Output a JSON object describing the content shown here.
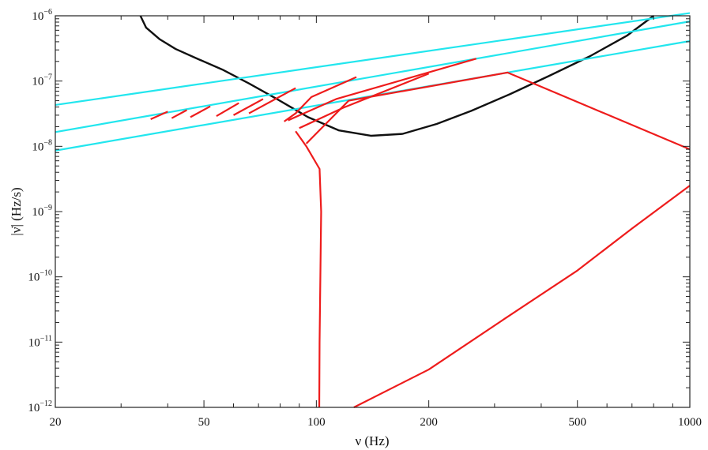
{
  "chart_data": {
    "type": "line",
    "xlabel": "ν (Hz)",
    "ylabel": "|ν̇| (Hz/s)",
    "xscale": "log",
    "yscale": "log",
    "xlim": [
      20,
      1000
    ],
    "ylim": [
      1e-12,
      1e-06
    ],
    "x_ticks": [
      {
        "value": 20,
        "label": "20"
      },
      {
        "value": 50,
        "label": "50"
      },
      {
        "value": 100,
        "label": "100"
      },
      {
        "value": 200,
        "label": "200"
      },
      {
        "value": 500,
        "label": "500"
      },
      {
        "value": 1000,
        "label": "1000"
      }
    ],
    "y_ticks": [
      {
        "value": 1e-12,
        "base": "10",
        "exp": "−12"
      },
      {
        "value": 1e-11,
        "base": "10",
        "exp": "−11"
      },
      {
        "value": 1e-10,
        "base": "10",
        "exp": "−10"
      },
      {
        "value": 1e-09,
        "base": "10",
        "exp": "−9"
      },
      {
        "value": 1e-08,
        "base": "10",
        "exp": "−8"
      },
      {
        "value": 1e-07,
        "base": "10",
        "exp": "−7"
      },
      {
        "value": 1e-06,
        "base": "10",
        "exp": "−6"
      }
    ],
    "grid": false,
    "legend": "none",
    "colors": {
      "black": "#111111",
      "cyan": "#22e6ee",
      "red": "#ee1c1c"
    },
    "series": [
      {
        "color": "black",
        "points": [
          [
            33.8,
            1e-06
          ],
          [
            35.0,
            6.6e-07
          ],
          [
            38.0,
            4.4e-07
          ],
          [
            42.0,
            3.1e-07
          ],
          [
            48.0,
            2.2e-07
          ],
          [
            56.0,
            1.5e-07
          ],
          [
            66.0,
            9.2e-08
          ],
          [
            78.0,
            5.4e-08
          ],
          [
            95.0,
            2.8e-08
          ],
          [
            115.0,
            1.75e-08
          ],
          [
            140.0,
            1.45e-08
          ],
          [
            170.0,
            1.55e-08
          ],
          [
            210.0,
            2.2e-08
          ],
          [
            260.0,
            3.5e-08
          ],
          [
            330.0,
            6.3e-08
          ],
          [
            420.0,
            1.2e-07
          ],
          [
            540.0,
            2.4e-07
          ],
          [
            680.0,
            5e-07
          ],
          [
            800.0,
            1e-06
          ]
        ]
      },
      {
        "color": "cyan",
        "points": [
          [
            20,
            4.3e-08
          ],
          [
            1000,
            1.1e-06
          ]
        ]
      },
      {
        "color": "cyan",
        "points": [
          [
            20,
            1.65e-08
          ],
          [
            1000,
            8.2e-07
          ]
        ]
      },
      {
        "color": "cyan",
        "points": [
          [
            20,
            8.6e-09
          ],
          [
            1000,
            4.1e-07
          ]
        ]
      },
      {
        "color": "red",
        "points": [
          [
            36,
            2.6e-08
          ],
          [
            40,
            3.4e-08
          ]
        ]
      },
      {
        "color": "red",
        "points": [
          [
            41,
            2.7e-08
          ],
          [
            45,
            3.6e-08
          ]
        ]
      },
      {
        "color": "red",
        "points": [
          [
            46,
            2.8e-08
          ],
          [
            52,
            4.1e-08
          ]
        ]
      },
      {
        "color": "red",
        "points": [
          [
            54,
            2.9e-08
          ],
          [
            62,
            4.6e-08
          ]
        ]
      },
      {
        "color": "red",
        "points": [
          [
            60,
            3e-08
          ],
          [
            72,
            5.3e-08
          ]
        ]
      },
      {
        "color": "red",
        "points": [
          [
            66,
            3.2e-08
          ],
          [
            88,
            7.8e-08
          ]
        ]
      },
      {
        "color": "red",
        "points": [
          [
            82,
            2.4e-08
          ],
          [
            88,
            3.2e-08
          ],
          [
            97,
            5.7e-08
          ],
          [
            128,
            1.15e-07
          ]
        ]
      },
      {
        "color": "red",
        "points": [
          [
            84,
            2.5e-08
          ],
          [
            113,
            5.3e-08
          ],
          [
            268,
            2.2e-07
          ]
        ]
      },
      {
        "color": "red",
        "points": [
          [
            90,
            1.9e-08
          ],
          [
            118,
            3.9e-08
          ],
          [
            200,
            1.3e-07
          ]
        ]
      },
      {
        "color": "red",
        "points": [
          [
            94,
            1.1e-08
          ],
          [
            122,
            5e-08
          ],
          [
            325,
            1.35e-07
          ],
          [
            1000,
            9e-09
          ]
        ]
      },
      {
        "color": "red",
        "points": [
          [
            88,
            1.7e-08
          ],
          [
            94,
            1e-08
          ],
          [
            102,
            4.5e-09
          ],
          [
            103,
            1e-09
          ],
          [
            102.5,
            1e-10
          ],
          [
            102,
            1e-11
          ],
          [
            101.8,
            1e-12
          ]
        ]
      },
      {
        "color": "red",
        "points": [
          [
            126,
            1e-12
          ],
          [
            200,
            3.8e-12
          ],
          [
            320,
            2.3e-11
          ],
          [
            500,
            1.25e-10
          ],
          [
            700,
            5.5e-10
          ],
          [
            1000,
            2.5e-09
          ]
        ]
      }
    ]
  }
}
